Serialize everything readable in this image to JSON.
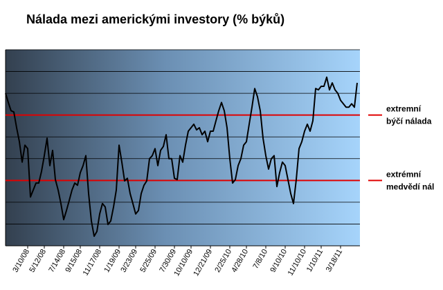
{
  "chart_data": {
    "type": "line",
    "title": "Nálada mezi americkými investory (% býků)",
    "categories": [
      null,
      null,
      null,
      null,
      null,
      null,
      null,
      null,
      "3/10/08",
      null,
      null,
      null,
      null,
      null,
      "5/12/08",
      null,
      null,
      null,
      null,
      null,
      null,
      "7/14/08",
      null,
      null,
      null,
      null,
      null,
      "9/15/08",
      null,
      null,
      null,
      null,
      null,
      null,
      "11/17/08",
      null,
      null,
      null,
      null,
      null,
      null,
      "1/19/09",
      null,
      null,
      null,
      null,
      null,
      "3/23/09",
      null,
      null,
      null,
      null,
      null,
      null,
      "5/25/09",
      null,
      null,
      null,
      null,
      null,
      null,
      "7/30/09",
      null,
      null,
      null,
      null,
      null,
      "10/10/09",
      null,
      null,
      null,
      null,
      null,
      null,
      "12/21/09",
      null,
      null,
      null,
      null,
      null,
      null,
      "2/25/10",
      null,
      null,
      null,
      null,
      null,
      "4/28/10",
      null,
      null,
      null,
      null,
      null,
      null,
      "7/8/10",
      null,
      null,
      null,
      null,
      null,
      null,
      "9/10/10",
      null,
      null,
      null,
      null,
      null,
      null,
      "11/10/10",
      null,
      null,
      null,
      null,
      null,
      "1/10/11",
      null,
      null,
      null,
      null,
      null,
      null,
      "3/18/11",
      null,
      null,
      null,
      null,
      null,
      null
    ],
    "series": [
      {
        "color": "#000000",
        "values": [
          50.0,
          47.9,
          46.0,
          45.7,
          42.1,
          38.9,
          34.2,
          38.1,
          37.3,
          26.2,
          27.8,
          29.4,
          29.4,
          32.1,
          35.7,
          39.7,
          33.4,
          36.9,
          30.2,
          27.8,
          24.7,
          21.0,
          23.1,
          25.4,
          27.8,
          29.4,
          28.9,
          31.8,
          33.4,
          35.7,
          27.0,
          20.7,
          17.2,
          18.3,
          22.3,
          24.7,
          23.9,
          19.9,
          20.7,
          23.9,
          27.8,
          38.1,
          34.2,
          29.9,
          30.5,
          27.0,
          24.7,
          22.3,
          23.1,
          27.0,
          28.9,
          29.9,
          35.0,
          35.7,
          37.3,
          33.4,
          36.9,
          37.8,
          40.5,
          35.0,
          35.0,
          30.5,
          30.2,
          35.7,
          34.2,
          38.1,
          41.3,
          42.1,
          42.9,
          41.6,
          42.1,
          40.5,
          41.3,
          38.9,
          41.3,
          41.3,
          43.7,
          46.0,
          47.9,
          46.0,
          42.1,
          35.0,
          29.4,
          30.2,
          33.4,
          35.0,
          38.1,
          38.9,
          42.9,
          46.8,
          51.1,
          49.2,
          46.0,
          39.7,
          35.7,
          32.6,
          35.0,
          35.7,
          28.6,
          31.8,
          34.2,
          33.4,
          30.2,
          27.0,
          24.7,
          30.2,
          37.3,
          38.9,
          41.3,
          42.9,
          41.3,
          43.7,
          51.1,
          50.8,
          51.6,
          51.6,
          53.7,
          50.8,
          52.4,
          50.8,
          50.0,
          48.4,
          47.6,
          46.8,
          46.8,
          47.6,
          46.8,
          52.4
        ]
      }
    ],
    "ylim": [
      15,
      60
    ],
    "yticks": [
      15,
      20,
      25,
      30,
      35,
      40,
      45,
      50,
      55,
      60
    ],
    "grid": true,
    "reference_lines": [
      {
        "value": 45,
        "color": "#e00000",
        "label": [
          "extremní",
          "býčí nálada"
        ]
      },
      {
        "value": 30,
        "color": "#e00000",
        "label": [
          "extrémní",
          "medvědí nál"
        ]
      }
    ]
  }
}
